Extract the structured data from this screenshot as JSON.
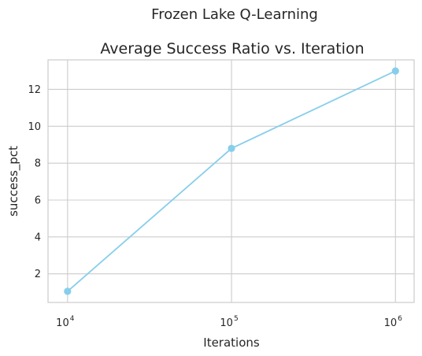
{
  "figure": {
    "suptitle": "Frozen Lake Q-Learning"
  },
  "chart_data": {
    "type": "line",
    "title": "Average Success Ratio vs. Iteration",
    "xlabel": "Iterations",
    "ylabel": "success_pct",
    "x_scale": "log",
    "x_ticks": [
      {
        "base": "10",
        "exp": "4",
        "value": 10000
      },
      {
        "base": "10",
        "exp": "5",
        "value": 100000
      },
      {
        "base": "10",
        "exp": "6",
        "value": 1000000
      }
    ],
    "y_ticks": [
      2,
      4,
      6,
      8,
      10,
      12
    ],
    "xlim": [
      7600,
      1300000
    ],
    "ylim": [
      0.45,
      13.6
    ],
    "grid": true,
    "series": [
      {
        "x": [
          10000,
          100000,
          1000000
        ],
        "y": [
          1.05,
          8.8,
          13.0
        ],
        "color": "#87CEEB",
        "marker": "circle"
      }
    ]
  }
}
